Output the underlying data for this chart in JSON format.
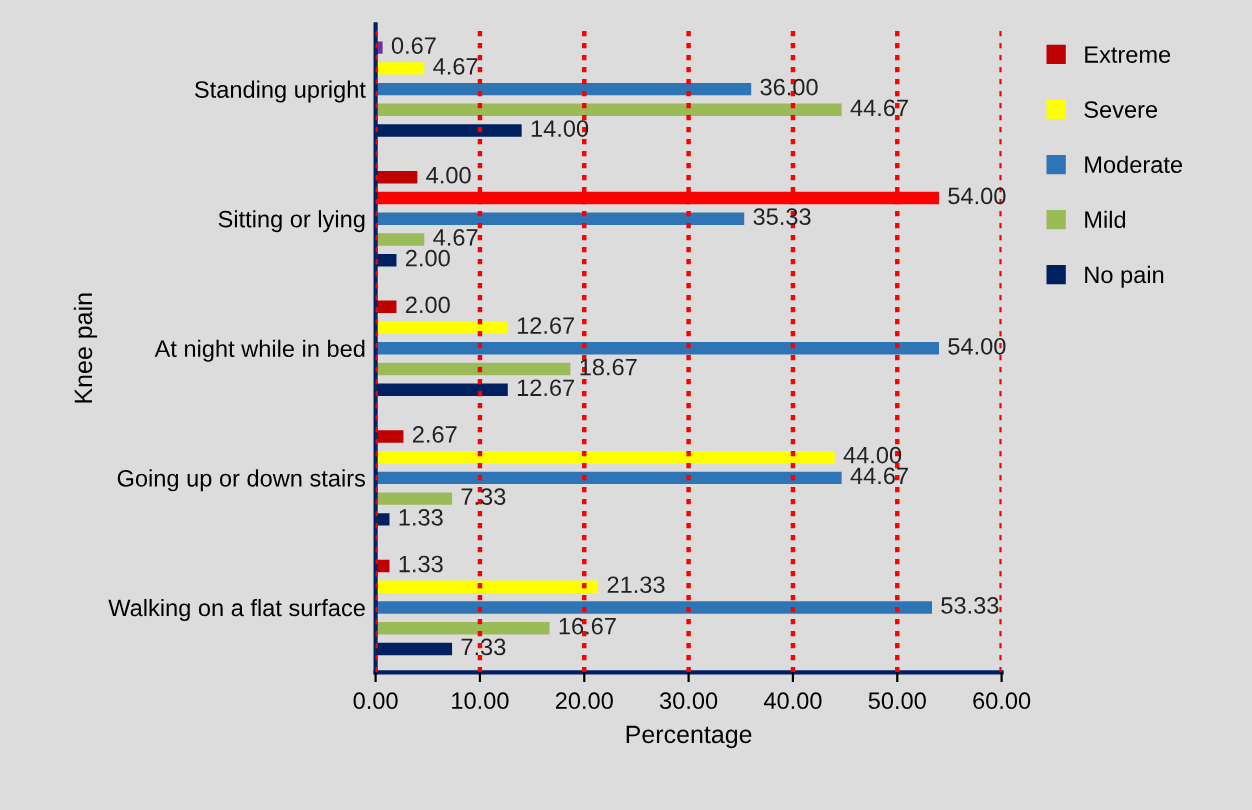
{
  "chart_data": {
    "type": "bar",
    "orientation": "horizontal",
    "xlabel": "Percentage",
    "ylabel": "Knee pain",
    "categories": [
      "Standing upright",
      "Sitting or lying",
      "At night while in bed",
      "Going up or down stairs",
      "Walking on a flat surface"
    ],
    "series": [
      {
        "name": "Extreme",
        "color": "#c00000",
        "colors": [
          "#7030a0",
          "#c00000",
          "#c00000",
          "#c00000",
          "#c00000"
        ],
        "values": [
          0.67,
          4.0,
          2.0,
          2.67,
          1.33
        ],
        "value_labels": [
          "0.67",
          "4.00",
          "2.00",
          "2.67",
          "1.33"
        ]
      },
      {
        "name": "Severe",
        "color": "#ffff00",
        "colors": [
          "#ffff00",
          "#ff0000",
          "#ffff00",
          "#ffff00",
          "#ffff00"
        ],
        "values": [
          4.67,
          54.0,
          12.67,
          44.0,
          21.33
        ],
        "value_labels": [
          "4.67",
          "54.00",
          "12.67",
          "44.00",
          "21.33"
        ]
      },
      {
        "name": "Moderate",
        "color": "#2e75b6",
        "values": [
          36.0,
          35.33,
          54.0,
          44.67,
          53.33
        ],
        "value_labels": [
          "36.00",
          "35.33",
          "54.00",
          "44.67",
          "53.33"
        ]
      },
      {
        "name": "Mild",
        "color": "#9bbb59",
        "values": [
          44.67,
          4.67,
          18.67,
          7.33,
          16.67
        ],
        "value_labels": [
          "44.67",
          "4.67",
          "18.67",
          "7.33",
          "16.67"
        ]
      },
      {
        "name": "No pain",
        "color": "#002060",
        "values": [
          14.0,
          2.0,
          12.67,
          1.33,
          7.33
        ],
        "value_labels": [
          "14.00",
          "2.00",
          "12.67",
          "1.33",
          "7.33"
        ]
      }
    ],
    "xlim": [
      0,
      60
    ],
    "xticks": [
      {
        "value": 0,
        "label": "0.00"
      },
      {
        "value": 10,
        "label": "10.00"
      },
      {
        "value": 20,
        "label": "20.00"
      },
      {
        "value": 30,
        "label": "30.00"
      },
      {
        "value": 40,
        "label": "40.00"
      },
      {
        "value": 50,
        "label": "50.00"
      },
      {
        "value": 60,
        "label": "60.00"
      }
    ],
    "grid": "x",
    "legend": "right"
  }
}
